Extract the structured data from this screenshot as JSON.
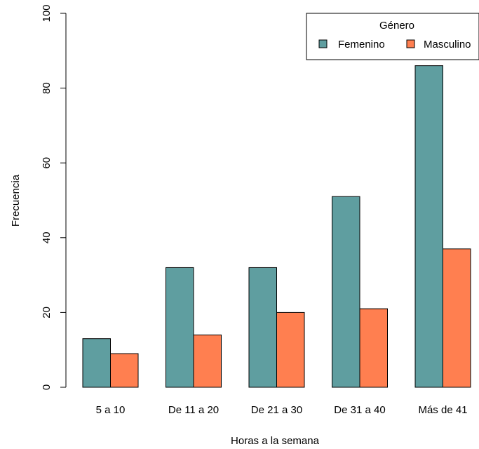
{
  "chart_data": {
    "type": "bar",
    "title": "",
    "xlabel": "Horas a la semana",
    "ylabel": "Frecuencia",
    "categories": [
      "5 a 10",
      "De 11 a 20",
      "De 21 a 30",
      "De 31 a 40",
      "Más de 41"
    ],
    "series": [
      {
        "name": "Femenino",
        "values": [
          13,
          32,
          32,
          51,
          86
        ],
        "color": "#5F9EA0"
      },
      {
        "name": "Masculino",
        "values": [
          9,
          14,
          20,
          21,
          37
        ],
        "color": "#FF7F50"
      }
    ],
    "ylim": [
      0,
      100
    ],
    "yticks": [
      0,
      20,
      40,
      60,
      80,
      100
    ],
    "grid": false,
    "legend": {
      "title": "Género",
      "position": "top-right"
    }
  }
}
